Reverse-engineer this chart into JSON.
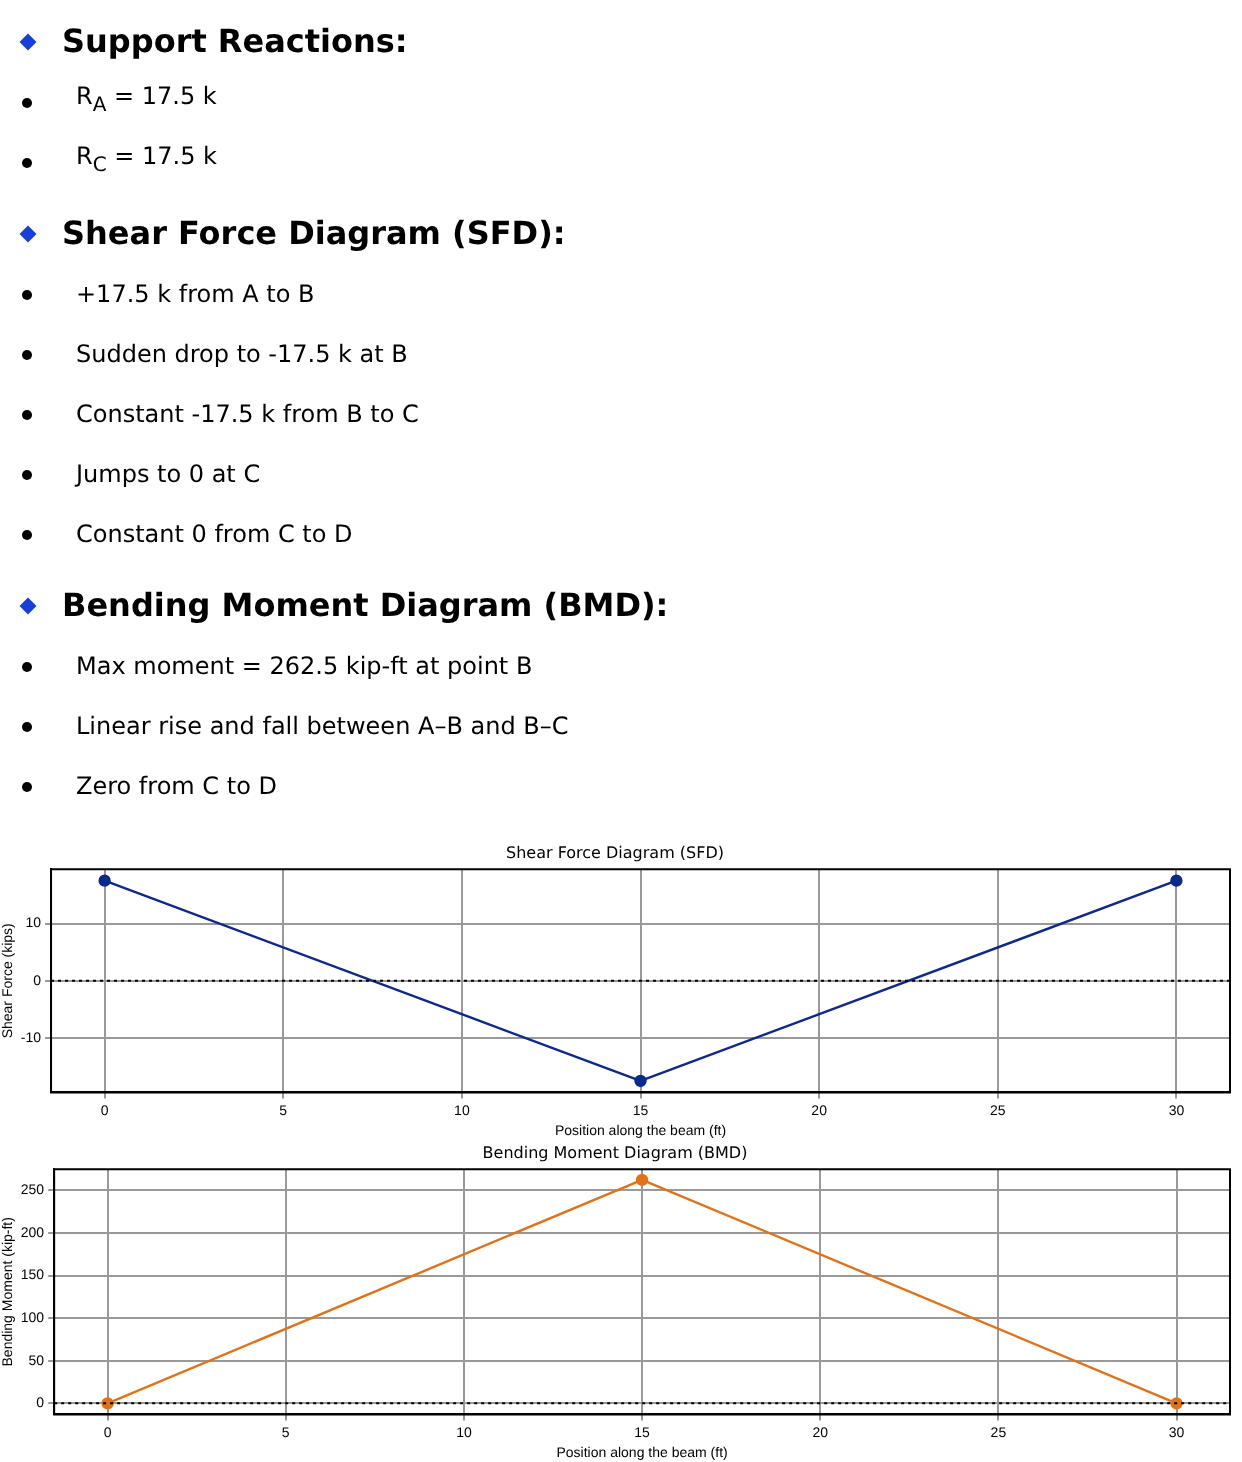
{
  "chart_data": [
    {
      "type": "other",
      "title": "Support Reactions:",
      "annotations": [
        "R$_{A}$ = 17.5 k",
        "R$_{C}$ = 17.5 k"
      ]
    },
    {
      "type": "other",
      "title": "Shear Force Diagram (SFD):",
      "annotations": [
        "+17.5 k from A to B",
        "Sudden drop to -17.5 k at B",
        "Constant -17.5 k from B to C",
        "Jumps to 0 at C",
        "Constant 0 from C to D"
      ]
    },
    {
      "type": "other",
      "title": "Bending Moment Diagram (BMD):",
      "annotations": [
        "Max moment = 262.5 kip-ft at point B",
        "Linear rise and fall between A–B and B–C",
        "Zero from C to D"
      ]
    },
    {
      "type": "line",
      "title": "Shear Force Diagram (SFD)",
      "xlabel": "Position along the beam (ft)",
      "ylabel": "Shear Force (kips)",
      "x": [
        0,
        15,
        30
      ],
      "series": [
        {
          "color": "#0b2a8c",
          "values": [
            17.5,
            -17.5,
            17.5
          ]
        }
      ],
      "xlim": [
        -1.5,
        31.5
      ],
      "xticks": [
        0,
        5,
        10,
        15,
        20,
        25,
        30
      ],
      "ylim": [
        -19.5,
        19.5
      ],
      "yticks": [
        -10,
        0,
        10
      ],
      "ref_lines": [
        {
          "axis": "y",
          "value": 0,
          "color": "#000000",
          "line_style": "dotted"
        }
      ],
      "grid": true,
      "marker": "circle",
      "line_style": "solid"
    },
    {
      "type": "line",
      "title": "Bending Moment Diagram (BMD)",
      "xlabel": "Position along the beam (ft)",
      "ylabel": "Bending Moment (kip-ft)",
      "x": [
        0,
        15,
        30
      ],
      "series": [
        {
          "color": "#e0731a",
          "values": [
            0,
            262.5,
            0
          ]
        }
      ],
      "xlim": [
        -1.5,
        31.5
      ],
      "xticks": [
        0,
        5,
        10,
        15,
        20,
        25,
        30
      ],
      "ylim": [
        -13,
        275
      ],
      "yticks": [
        0,
        50,
        100,
        150,
        200,
        250
      ],
      "ref_lines": [
        {
          "axis": "y",
          "value": 0,
          "color": "#000000",
          "line_style": "dotted"
        }
      ],
      "grid": true,
      "marker": "circle",
      "line_style": "solid"
    }
  ]
}
